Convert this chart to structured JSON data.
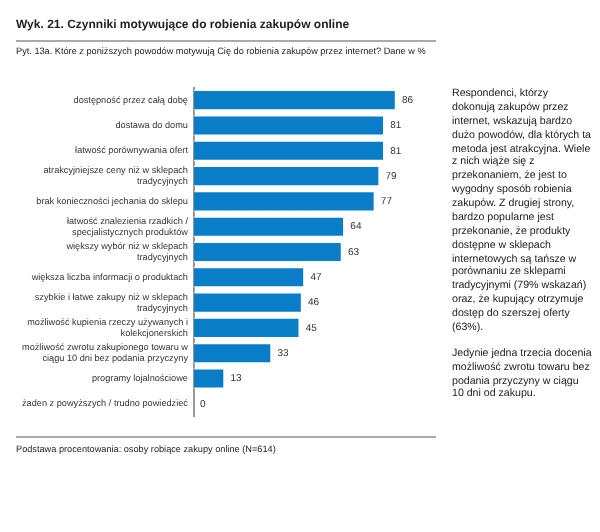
{
  "chart_data": {
    "type": "bar",
    "orientation": "horizontal",
    "title": "Wyk. 21. Czynniki motywujące do robienia zakupów online",
    "subtitle": "Pyt. 13a. Które z poniższych powodów motywują Cię do robienia zakupów przez internet? Dane w %",
    "categories": [
      "dostępność przez całą dobę",
      "dostawa do domu",
      "łatwość porównywania ofert",
      "atrakcyjniejsze ceny niż w sklepach tradycyjnych",
      "brak konieczności jechania do sklepu",
      "łatwość znalezienia rzadkich / specjalistycznych produktów",
      "większy wybór niż w sklepach tradycyjnych",
      "większa liczba informacji o produktach",
      "szybkie i łatwe zakupy niż w sklepach tradycyjnych",
      "możliwość kupienia rzeczy używanych i kolekcjonerskich",
      "możliwość zwrotu zakupionego towaru w ciągu 10 dni bez podania przyczyny",
      "programy lojalnościowe",
      "żaden z powyższych / trudno powiedzieć"
    ],
    "values": [
      86,
      81,
      81,
      79,
      77,
      64,
      63,
      47,
      46,
      45,
      33,
      13,
      0
    ],
    "color": "#0a7dc8",
    "data_labels": true,
    "grid": false,
    "legend": false,
    "annotations": [
      "Respondenci, którzy dokonują zakupów przez internet, wskazują bardzo dużo powodów, dla których ta metoda jest atrakcyjna. Wiele z nich wiąże się z przekonaniem, że jest to wygodny sposób robienia zakupów. Z drugiej strony, bardzo popularne jest przekonanie, że produkty dostępne w sklepach internetowych są tańsze w porównaniu ze sklepami tradycyjnymi (79% wskazań) oraz, że kupujący otrzymuje dostęp do szerszej oferty (63%).",
      "Jedynie jedna trzecia docenia możliwość zwrotu towaru bez podania przyczyny w ciągu 10 dni od zakupu.",
      "Podstawa procentowania: osoby robiące zakupy online (N=614)"
    ]
  }
}
